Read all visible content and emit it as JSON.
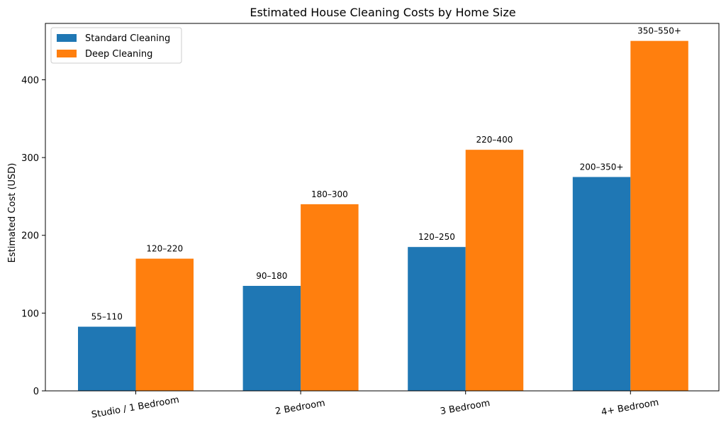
{
  "chart_data": {
    "type": "bar",
    "title": "Estimated House Cleaning Costs by Home Size",
    "xlabel": "",
    "ylabel": "Estimated Cost (USD)",
    "categories": [
      "Studio / 1 Bedroom",
      "2 Bedroom",
      "3 Bedroom",
      "4+ Bedroom"
    ],
    "series": [
      {
        "name": "Standard Cleaning",
        "color": "#1f77b4",
        "values": [
          82.5,
          135,
          185,
          275
        ],
        "labels": [
          "55–110",
          "90–180",
          "120–250",
          "200–350+"
        ]
      },
      {
        "name": "Deep Cleaning",
        "color": "#ff7f0e",
        "values": [
          170,
          240,
          310,
          450
        ],
        "labels": [
          "120–220",
          "180–300",
          "220–400",
          "350–550+"
        ]
      }
    ],
    "ylim": [
      0,
      472.5
    ],
    "yticks": [
      "0",
      "100",
      "200",
      "300",
      "400"
    ],
    "grid": false,
    "legend": "top-left"
  }
}
